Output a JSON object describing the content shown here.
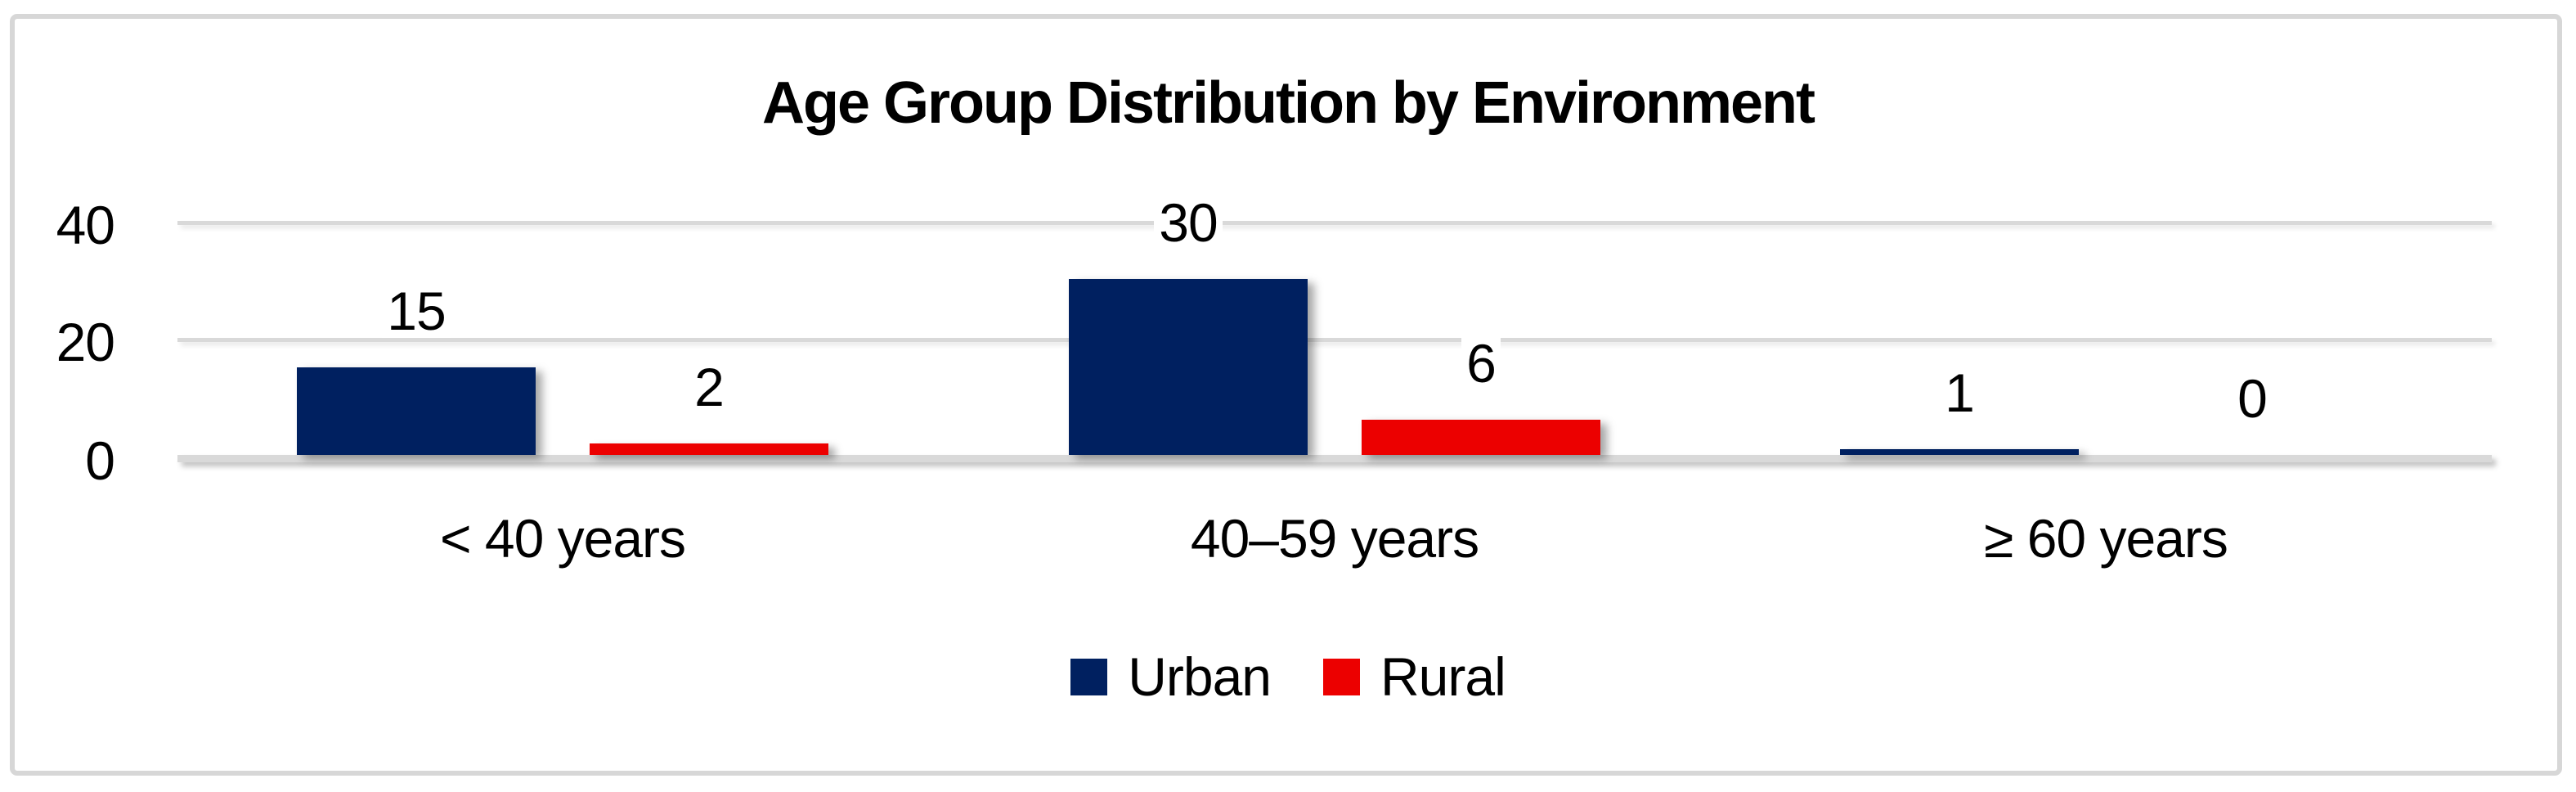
{
  "chart_data": {
    "type": "bar",
    "title": "Age Group Distribution by Environment",
    "categories": [
      "< 40 years",
      "40–59 years",
      "≥ 60 years"
    ],
    "series": [
      {
        "name": "Urban",
        "color": "#002060",
        "values": [
          15,
          30,
          1
        ]
      },
      {
        "name": "Rural",
        "color": "#EC0000",
        "values": [
          2,
          6,
          0
        ]
      }
    ],
    "data_labels": [
      [
        "15",
        "30",
        "1"
      ],
      [
        "2",
        "6",
        "0"
      ]
    ],
    "y_ticks": [
      "40",
      "20",
      "0"
    ],
    "ylim": [
      0,
      40
    ],
    "grid": true,
    "legend_position": "bottom"
  },
  "colors": {
    "grid": "#D9D9D9",
    "frame_border": "#D7D7D7",
    "background": "#FFFFFF",
    "text": "#000000"
  }
}
